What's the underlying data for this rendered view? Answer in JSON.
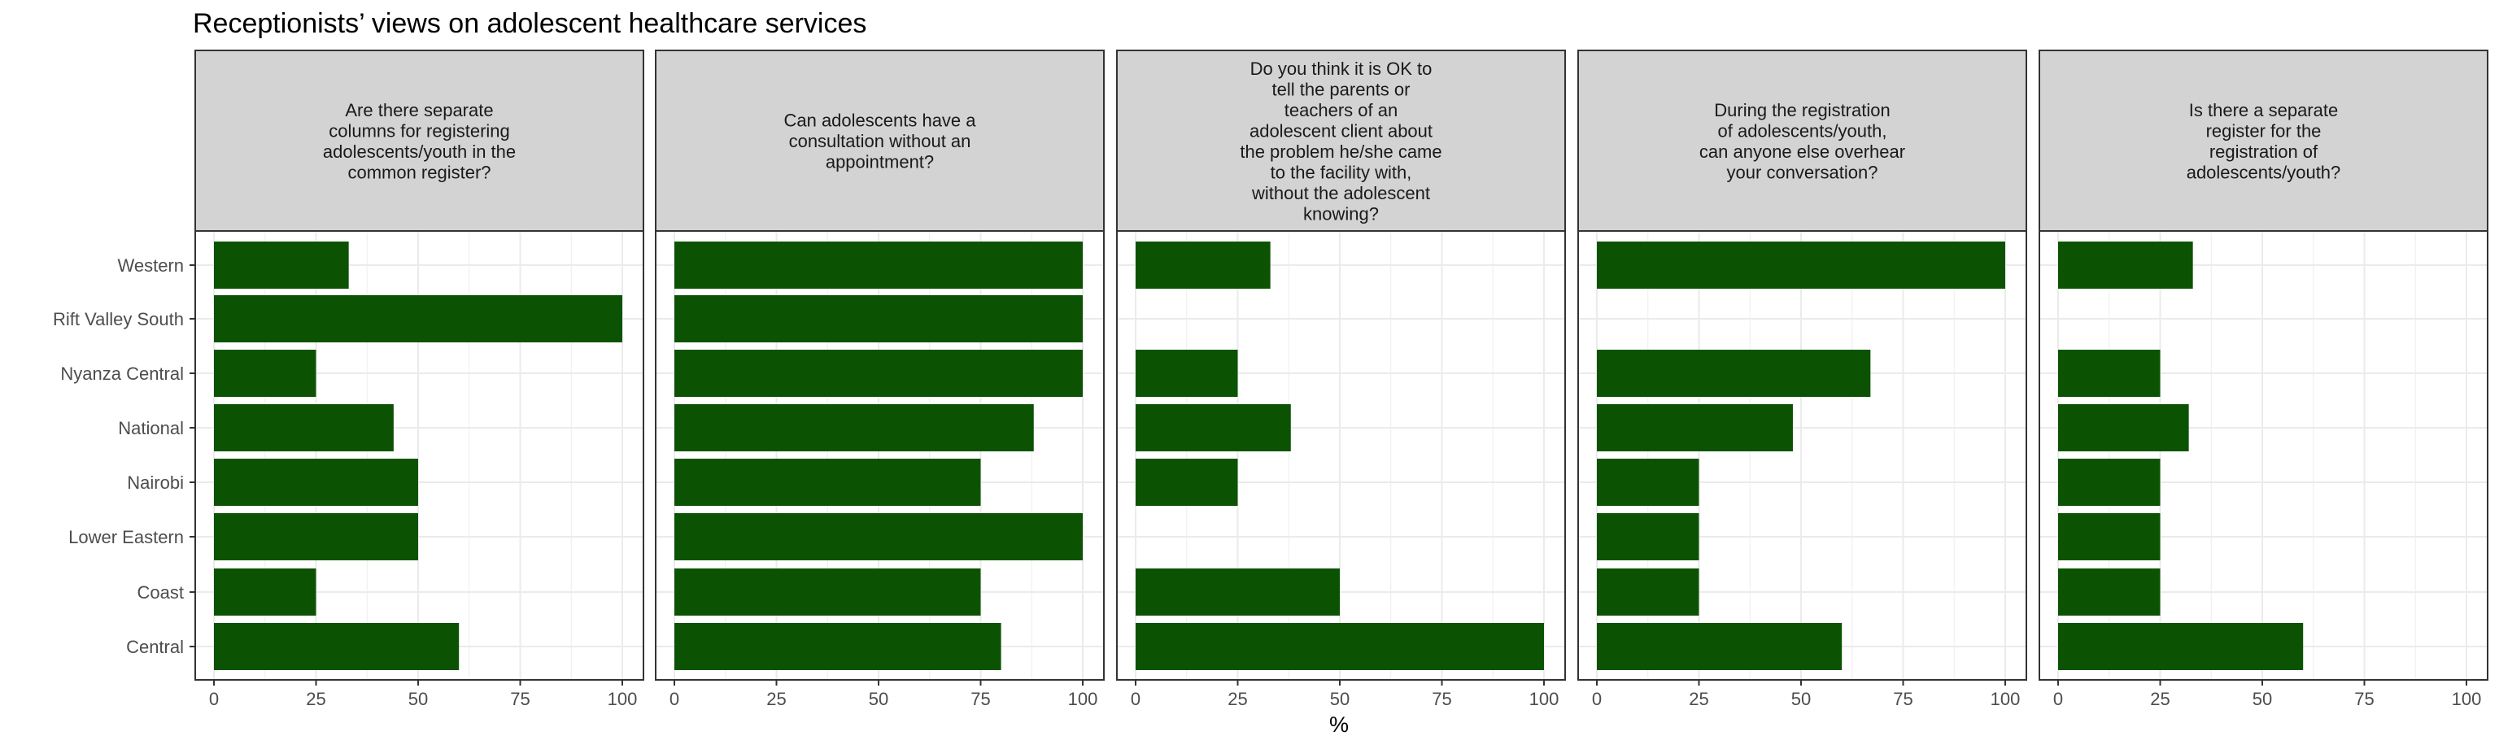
{
  "chart_data": {
    "type": "bar",
    "orientation": "horizontal",
    "title": "Receptionists’ views on adolescent healthcare services",
    "xlabel": "%",
    "ylabel": "",
    "xlim": [
      0,
      100
    ],
    "xticks": [
      0,
      25,
      50,
      75,
      100
    ],
    "bar_color": "#0b5303",
    "strip_fill": "#d3d3d3",
    "grid": true,
    "categories": [
      "Western",
      "Rift Valley South",
      "Nyanza Central",
      "National",
      "Nairobi",
      "Lower Eastern",
      "Coast",
      "Central"
    ],
    "panels": [
      {
        "label": "Are there separate columns for registering adolescents/youth in the common register?",
        "label_lines": [
          "Are there separate",
          "columns for registering",
          "adolescents/youth in the",
          "common register?"
        ],
        "values": [
          33,
          100,
          25,
          44,
          50,
          50,
          25,
          60
        ]
      },
      {
        "label": "Can adolescents have a consultation without an appointment?",
        "label_lines": [
          "Can adolescents have a",
          "consultation without an",
          "appointment?"
        ],
        "values": [
          100,
          100,
          100,
          88,
          75,
          100,
          75,
          80
        ]
      },
      {
        "label": "Do you think it is OK to tell the parents or teachers of an adolescent client about the problem he/she came to the facility with, without the adolescent knowing?",
        "label_lines": [
          "Do you think it is OK to",
          "tell the parents or",
          "teachers of an",
          "adolescent client about",
          "the problem he/she came",
          "to the facility with,",
          "without the adolescent",
          "knowing?"
        ],
        "values": [
          33,
          0,
          25,
          38,
          25,
          0,
          50,
          100
        ]
      },
      {
        "label": "During the registration of adolescents/youth, can anyone else overhear your conversation?",
        "label_lines": [
          "During the registration",
          "of adolescents/youth,",
          "can anyone else overhear",
          "your conversation?"
        ],
        "values": [
          100,
          0,
          67,
          48,
          25,
          25,
          25,
          60
        ]
      },
      {
        "label": "Is there a separate register for the registration of adolescents/youth?",
        "label_lines": [
          "Is there a separate",
          "register for the",
          "registration of",
          "adolescents/youth?"
        ],
        "values": [
          33,
          0,
          25,
          32,
          25,
          25,
          25,
          60
        ]
      }
    ]
  }
}
